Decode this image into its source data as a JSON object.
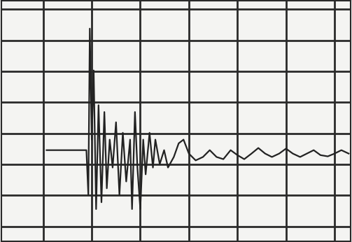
{
  "chart_data": {
    "type": "line",
    "color": "#222222",
    "grid": true,
    "tick_labels": false,
    "line_style": "solid",
    "x": [
      0.07,
      0.89,
      0.93,
      0.96,
      1.0,
      1.04,
      1.09,
      1.14,
      1.2,
      1.26,
      1.31,
      1.37,
      1.43,
      1.5,
      1.57,
      1.64,
      1.71,
      1.79,
      1.83,
      1.89,
      1.94,
      2.0,
      2.06,
      2.11,
      2.19,
      2.26,
      2.31,
      2.4,
      2.49,
      2.57,
      2.69,
      2.79,
      2.89,
      3.0,
      3.14,
      3.29,
      3.43,
      3.57,
      3.71,
      3.86,
      4.0,
      4.14,
      4.29,
      4.43,
      4.57,
      4.71,
      4.86,
      5.0,
      5.14,
      5.29,
      5.43,
      5.57,
      5.71,
      5.86,
      6.0,
      6.14,
      6.29
    ],
    "values": [
      2.46,
      2.46,
      1.01,
      6.38,
      2.8,
      5.03,
      0.56,
      3.91,
      0.78,
      3.69,
      1.23,
      2.8,
      1.9,
      3.36,
      1.01,
      3.02,
      1.45,
      2.8,
      0.56,
      3.69,
      1.9,
      0.56,
      2.8,
      1.68,
      3.02,
      1.9,
      2.8,
      2.01,
      2.46,
      1.9,
      2.24,
      2.68,
      2.8,
      2.35,
      2.13,
      2.24,
      2.46,
      2.24,
      2.17,
      2.46,
      2.3,
      2.17,
      2.35,
      2.53,
      2.35,
      2.24,
      2.35,
      2.51,
      2.35,
      2.24,
      2.35,
      2.46,
      2.3,
      2.26,
      2.35,
      2.46,
      2.35
    ],
    "xlim": [
      -0.86,
      6.33
    ],
    "xticks": [
      0,
      1,
      2,
      3,
      4,
      5,
      6
    ],
    "ylim": [
      -0.47,
      7.27
    ],
    "yticks": [
      0,
      1,
      2,
      3,
      4,
      5,
      6,
      7
    ]
  }
}
